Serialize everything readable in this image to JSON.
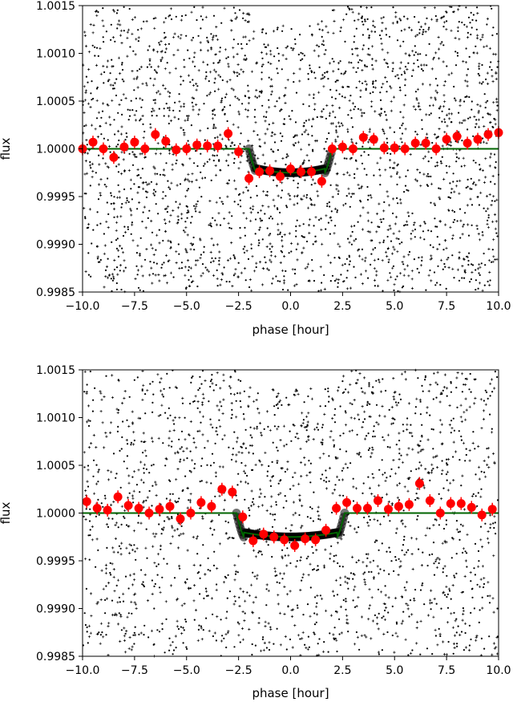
{
  "chart_data": [
    {
      "type": "scatter",
      "panel": "top",
      "xlabel": "phase [hour]",
      "ylabel": "flux",
      "xlim": [
        -10.0,
        10.0
      ],
      "ylim": [
        0.9985,
        1.0015
      ],
      "xticks": [
        "−10.0",
        "−7.5",
        "−5.0",
        "−2.5",
        "0.0",
        "2.5",
        "5.0",
        "7.5",
        "10.0"
      ],
      "xtick_values": [
        -10.0,
        -7.5,
        -5.0,
        -2.5,
        0.0,
        2.5,
        5.0,
        7.5,
        10.0
      ],
      "yticks": [
        "0.9985",
        "0.9990",
        "0.9995",
        "1.0000",
        "1.0005",
        "1.0010",
        "1.0015"
      ],
      "ytick_values": [
        0.9985,
        0.999,
        0.9995,
        1.0,
        1.0005,
        1.001,
        1.0015
      ],
      "grid": false,
      "colors": {
        "raw": "#000000",
        "binned": "#ff0000",
        "model": "#006400"
      },
      "model": {
        "baseline": 1.0,
        "depth": 0.00025,
        "t_half": 2.0
      },
      "binned": {
        "x": [
          -10.0,
          -9.5,
          -9.0,
          -8.5,
          -8.0,
          -7.5,
          -7.0,
          -6.5,
          -6.0,
          -5.5,
          -5.0,
          -4.5,
          -4.0,
          -3.5,
          -3.0,
          -2.5,
          -2.0,
          -1.5,
          -1.0,
          -0.5,
          0.0,
          0.5,
          1.0,
          1.5,
          2.0,
          2.5,
          3.0,
          3.5,
          4.0,
          4.5,
          5.0,
          5.5,
          6.0,
          6.5,
          7.0,
          7.5,
          8.0,
          8.5,
          9.0,
          9.5,
          10.0
        ],
        "y": [
          1.0,
          1.00007,
          1.0,
          0.99991,
          1.00002,
          1.00007,
          1.0,
          1.00015,
          1.00008,
          0.99999,
          1.0,
          1.00004,
          1.00003,
          1.00003,
          1.00016,
          0.99997,
          0.99969,
          0.99976,
          0.99977,
          0.99971,
          0.99979,
          0.99976,
          0.99976,
          0.99966,
          1.0,
          1.00002,
          1.0,
          1.00012,
          1.0001,
          1.00001,
          1.00001,
          1.0,
          1.00006,
          1.00006,
          1.0,
          1.0001,
          1.00013,
          1.00006,
          1.0001,
          1.00015,
          1.00017
        ]
      }
    },
    {
      "type": "scatter",
      "panel": "bottom",
      "xlabel": "phase [hour]",
      "ylabel": "flux",
      "xlim": [
        -10.0,
        10.0
      ],
      "ylim": [
        0.9985,
        1.0015
      ],
      "xticks": [
        "−10.0",
        "−7.5",
        "−5.0",
        "−2.5",
        "0.0",
        "2.5",
        "5.0",
        "7.5",
        "10.0"
      ],
      "xtick_values": [
        -10.0,
        -7.5,
        -5.0,
        -2.5,
        0.0,
        2.5,
        5.0,
        7.5,
        10.0
      ],
      "yticks": [
        "0.9985",
        "0.9990",
        "0.9995",
        "1.0000",
        "1.0005",
        "1.0010",
        "1.0015"
      ],
      "ytick_values": [
        0.9985,
        0.999,
        0.9995,
        1.0,
        1.0005,
        1.001,
        1.0015
      ],
      "grid": false,
      "colors": {
        "raw": "#000000",
        "binned": "#ff0000",
        "model": "#006400"
      },
      "model": {
        "baseline": 1.0,
        "depth": 0.00025,
        "t_half": 2.6
      },
      "binned": {
        "x": [
          -9.8,
          -9.3,
          -8.8,
          -8.3,
          -7.8,
          -7.3,
          -6.8,
          -6.3,
          -5.8,
          -5.3,
          -4.8,
          -4.3,
          -3.8,
          -3.3,
          -2.8,
          -2.3,
          -1.8,
          -1.3,
          -0.8,
          -0.3,
          0.2,
          0.7,
          1.2,
          1.7,
          2.2,
          2.7,
          3.2,
          3.7,
          4.2,
          4.7,
          5.2,
          5.7,
          6.2,
          6.7,
          7.2,
          7.7,
          8.2,
          8.7,
          9.2,
          9.7
        ],
        "y": [
          1.00012,
          1.00005,
          1.00003,
          1.00017,
          1.00008,
          1.00005,
          1.0,
          1.00004,
          1.00007,
          0.99994,
          1.0,
          1.00011,
          1.00007,
          1.00025,
          1.00022,
          0.99996,
          0.99971,
          0.99978,
          0.99975,
          0.99972,
          0.99966,
          0.99973,
          0.99972,
          0.99982,
          1.00005,
          1.00011,
          1.00005,
          1.00005,
          1.00013,
          1.00004,
          1.00007,
          1.00009,
          1.00031,
          1.00013,
          1.0,
          1.0001,
          1.0001,
          1.00006,
          0.99998,
          1.00004
        ]
      }
    }
  ]
}
